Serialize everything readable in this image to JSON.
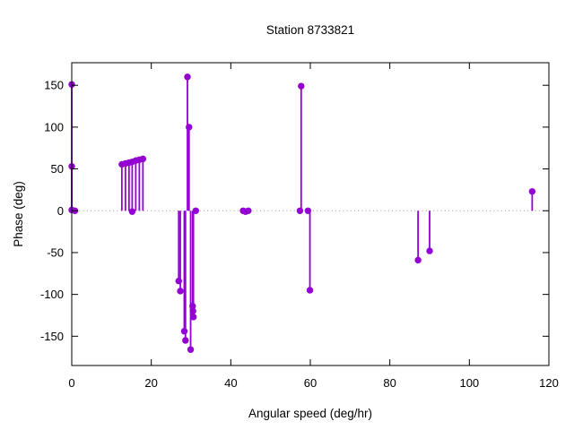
{
  "title": "Station 8733821",
  "chart_data": {
    "type": "scatter",
    "style": "impulses-with-points",
    "title": "Station 8733821",
    "xlabel": "Angular speed (deg/hr)",
    "ylabel": "Phase (deg)",
    "xlim": [
      0,
      120
    ],
    "ylim": [
      -185,
      177
    ],
    "xticks": [
      0,
      20,
      40,
      60,
      80,
      100,
      120
    ],
    "yticks": [
      -150,
      -100,
      -50,
      0,
      50,
      100,
      150
    ],
    "grid": false,
    "zero_line": true,
    "legend": "none",
    "marker_color": "#9400d3",
    "zero_line_color": "#999999",
    "axis_color": "#000000",
    "points": [
      [
        0,
        151
      ],
      [
        0,
        53
      ],
      [
        0,
        1
      ],
      [
        0.8,
        0
      ],
      [
        12.6,
        55.5
      ],
      [
        13.5,
        56.5
      ],
      [
        14.4,
        57.5
      ],
      [
        15.2,
        58.5
      ],
      [
        15.2,
        -1
      ],
      [
        16.1,
        60
      ],
      [
        17.0,
        61
      ],
      [
        17.9,
        62
      ],
      [
        26.9,
        -84
      ],
      [
        27.3,
        -96
      ],
      [
        28.3,
        -144
      ],
      [
        28.6,
        -155
      ],
      [
        29.1,
        160
      ],
      [
        29.5,
        100
      ],
      [
        29.9,
        -166
      ],
      [
        30.4,
        -114
      ],
      [
        30.5,
        -120
      ],
      [
        30.6,
        -127
      ],
      [
        31.2,
        0
      ],
      [
        43.1,
        0
      ],
      [
        43.7,
        -1
      ],
      [
        44.4,
        0
      ],
      [
        57.4,
        0
      ],
      [
        57.7,
        149
      ],
      [
        59.4,
        0
      ],
      [
        59.9,
        -95
      ],
      [
        87.1,
        -59
      ],
      [
        90.0,
        -48
      ],
      [
        115.8,
        23
      ]
    ]
  }
}
